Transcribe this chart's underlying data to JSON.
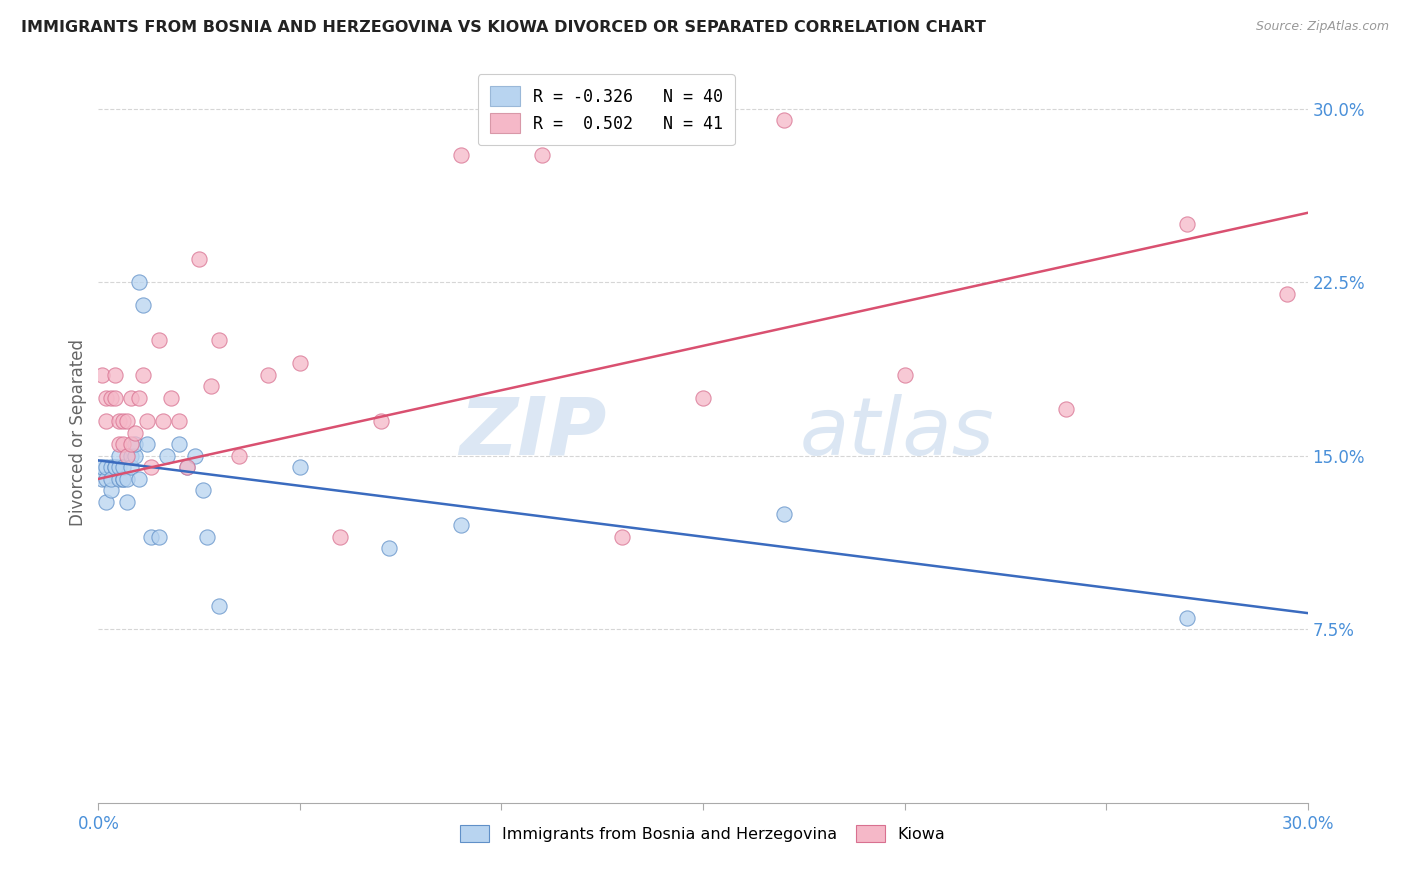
{
  "title": "IMMIGRANTS FROM BOSNIA AND HERZEGOVINA VS KIOWA DIVORCED OR SEPARATED CORRELATION CHART",
  "source": "Source: ZipAtlas.com",
  "ylabel": "Divorced or Separated",
  "x_min": 0.0,
  "x_max": 0.3,
  "y_min": 0.0,
  "y_max": 0.32,
  "legend_label1": "R = -0.326   N = 40",
  "legend_label2": "R =  0.502   N = 41",
  "legend_color1": "#b8d4f0",
  "legend_color2": "#f5b8c8",
  "line_color1": "#3a6bbf",
  "line_color2": "#d95070",
  "scatter_color1": "#b8d4f0",
  "scatter_color2": "#f5b8c8",
  "scatter_edge1": "#6090c8",
  "scatter_edge2": "#d87090",
  "watermark_zip": "ZIP",
  "watermark_atlas": "atlas",
  "bottom_legend_label1": "Immigrants from Bosnia and Herzegovina",
  "bottom_legend_label2": "Kiowa",
  "blue_scatter_x": [
    0.001,
    0.001,
    0.002,
    0.002,
    0.002,
    0.003,
    0.003,
    0.003,
    0.004,
    0.004,
    0.005,
    0.005,
    0.005,
    0.006,
    0.006,
    0.006,
    0.007,
    0.007,
    0.008,
    0.008,
    0.009,
    0.009,
    0.01,
    0.01,
    0.011,
    0.012,
    0.013,
    0.015,
    0.017,
    0.02,
    0.022,
    0.024,
    0.026,
    0.027,
    0.03,
    0.05,
    0.072,
    0.09,
    0.17,
    0.27
  ],
  "blue_scatter_y": [
    0.14,
    0.145,
    0.14,
    0.145,
    0.13,
    0.145,
    0.135,
    0.14,
    0.145,
    0.145,
    0.14,
    0.145,
    0.15,
    0.14,
    0.14,
    0.145,
    0.13,
    0.14,
    0.15,
    0.145,
    0.15,
    0.155,
    0.14,
    0.225,
    0.215,
    0.155,
    0.115,
    0.115,
    0.15,
    0.155,
    0.145,
    0.15,
    0.135,
    0.115,
    0.085,
    0.145,
    0.11,
    0.12,
    0.125,
    0.08
  ],
  "pink_scatter_x": [
    0.001,
    0.002,
    0.002,
    0.003,
    0.004,
    0.004,
    0.005,
    0.005,
    0.006,
    0.006,
    0.007,
    0.007,
    0.008,
    0.008,
    0.009,
    0.01,
    0.011,
    0.012,
    0.013,
    0.015,
    0.016,
    0.018,
    0.02,
    0.022,
    0.025,
    0.028,
    0.03,
    0.035,
    0.042,
    0.05,
    0.06,
    0.07,
    0.09,
    0.11,
    0.13,
    0.15,
    0.17,
    0.2,
    0.24,
    0.27,
    0.295
  ],
  "pink_scatter_y": [
    0.185,
    0.165,
    0.175,
    0.175,
    0.185,
    0.175,
    0.155,
    0.165,
    0.155,
    0.165,
    0.15,
    0.165,
    0.155,
    0.175,
    0.16,
    0.175,
    0.185,
    0.165,
    0.145,
    0.2,
    0.165,
    0.175,
    0.165,
    0.145,
    0.235,
    0.18,
    0.2,
    0.15,
    0.185,
    0.19,
    0.115,
    0.165,
    0.28,
    0.28,
    0.115,
    0.175,
    0.295,
    0.185,
    0.17,
    0.25,
    0.22
  ],
  "blue_line_x": [
    0.0,
    0.3
  ],
  "blue_line_y": [
    0.148,
    0.082
  ],
  "pink_line_x": [
    0.0,
    0.3
  ],
  "pink_line_y": [
    0.14,
    0.255
  ],
  "ytick_vals": [
    0.075,
    0.15,
    0.225,
    0.3
  ],
  "xtick_vals": [
    0.0,
    0.05,
    0.1,
    0.15,
    0.2,
    0.25,
    0.3
  ],
  "background_color": "#ffffff",
  "grid_color": "#cccccc",
  "tick_label_color": "#4a90d9",
  "title_color": "#222222",
  "source_color": "#999999",
  "ylabel_color": "#666666"
}
